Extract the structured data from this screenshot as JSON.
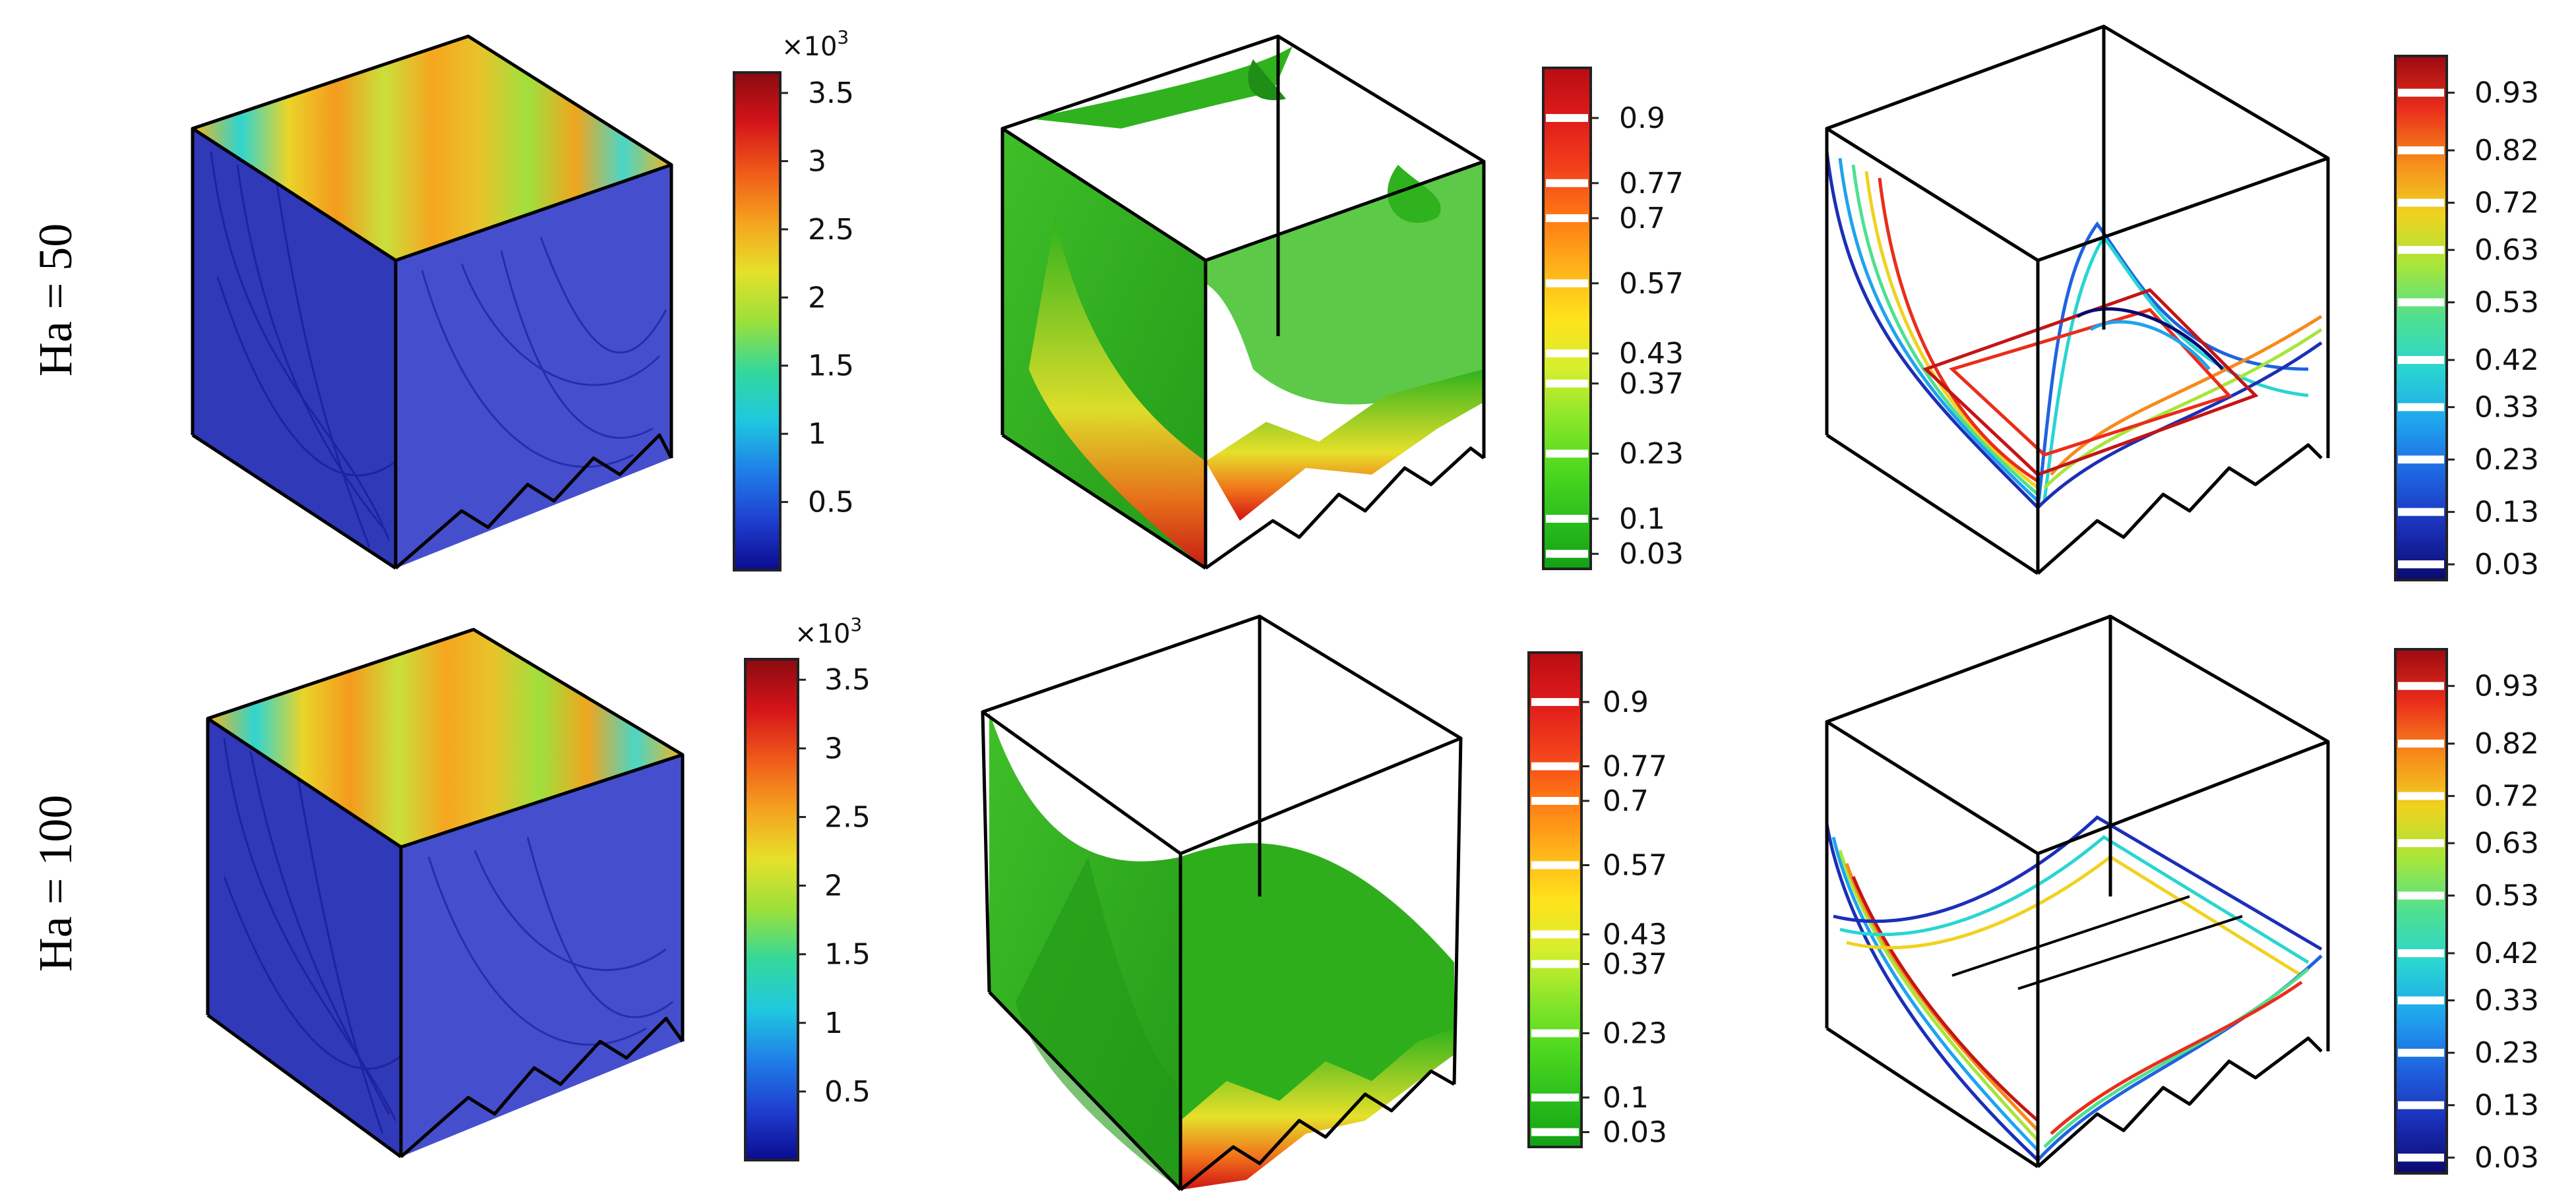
{
  "rows": [
    {
      "label": "Ha = 50"
    },
    {
      "label": "Ha = 100"
    }
  ],
  "colorbars": {
    "streamline": {
      "multiplier_base": "×10",
      "multiplier_exp": "3",
      "ticks": [
        "3.5",
        "3",
        "2.5",
        "2",
        "1.5",
        "1",
        "0.5"
      ],
      "tick_values": [
        3.5,
        3,
        2.5,
        2,
        1.5,
        1,
        0.5
      ],
      "range": [
        0,
        3.65
      ],
      "colors": [
        "#0b0b8f",
        "#1f3fd0",
        "#1f7fe8",
        "#1fc8e0",
        "#34d89a",
        "#9be03a",
        "#e6e02a",
        "#f5a21f",
        "#f05a1a",
        "#d4141a",
        "#8a0a10"
      ]
    },
    "isosurface": {
      "ticks": [
        "0.9",
        "0.77",
        "0.7",
        "0.57",
        "0.43",
        "0.37",
        "0.23",
        "0.1",
        "0.03"
      ],
      "tick_values": [
        0.9,
        0.77,
        0.7,
        0.57,
        0.43,
        0.37,
        0.23,
        0.1,
        0.03
      ],
      "range": [
        0,
        1
      ],
      "colors": [
        "#12a012",
        "#2bbf1d",
        "#4fd91f",
        "#8be62a",
        "#d7ee2d",
        "#ffe21c",
        "#ffb21a",
        "#ff7a15",
        "#f2401b",
        "#e01b1b",
        "#b80d12"
      ]
    },
    "contour": {
      "ticks": [
        "0.93",
        "0.82",
        "0.72",
        "0.63",
        "0.53",
        "0.42",
        "0.33",
        "0.23",
        "0.13",
        "0.03"
      ],
      "tick_values": [
        0.93,
        0.82,
        0.72,
        0.63,
        0.53,
        0.42,
        0.33,
        0.23,
        0.13,
        0.03
      ],
      "range": [
        0,
        1
      ],
      "colors": [
        "#0a0a70",
        "#1b2fb8",
        "#1f63e0",
        "#1fa3ee",
        "#29d5d2",
        "#4fe090",
        "#a6e63a",
        "#f0d21f",
        "#f78a1b",
        "#ea2d1a",
        "#9c0a12"
      ]
    }
  },
  "colors": {
    "cube_edge": "#000000",
    "streamline_blue": "#1a23b0",
    "isosurface_green": "#2fb21d"
  }
}
